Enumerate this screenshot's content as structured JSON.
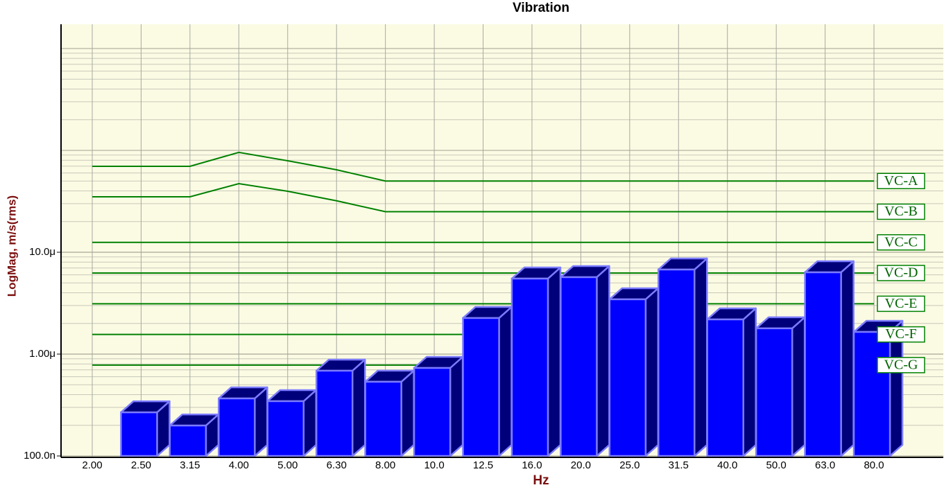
{
  "chart_data": {
    "type": "bar",
    "title": "Vibration",
    "x_label": "Hz",
    "y_label": "LogMag, m/s(rms)",
    "categories": [
      "2.00",
      "2.50",
      "3.15",
      "4.00",
      "5.00",
      "6.30",
      "8.00",
      "10.0",
      "12.5",
      "16.0",
      "20.0",
      "25.0",
      "31.5",
      "40.0",
      "50.0",
      "63.0",
      "80.0"
    ],
    "values": [
      null,
      2.68e-07,
      1.99e-07,
      3.67e-07,
      3.45e-07,
      6.87e-07,
      5.35e-07,
      7.31e-07,
      2.26e-06,
      5.51e-06,
      5.69e-06,
      3.45e-06,
      6.76e-06,
      2.19e-06,
      1.79e-06,
      6.35e-06,
      1.65e-06
    ],
    "color": "#0000ff",
    "ylim": [
      1e-07,
      0.00173
    ],
    "log_y": true,
    "yticks": [
      {
        "value": 1e-07,
        "label": "100.0n"
      },
      {
        "value": 1e-06,
        "label": "1.00μ"
      },
      {
        "value": 1e-05,
        "label": "10.0μ"
      }
    ],
    "grid": true,
    "criteria": [
      {
        "name": "VC-A",
        "color": "#008000",
        "values": [
          6.98e-05,
          6.98e-05,
          6.98e-05,
          9.55e-05,
          7.9e-05,
          6.45e-05,
          5e-05,
          5e-05,
          5e-05,
          5e-05,
          5e-05,
          5e-05,
          5e-05,
          5e-05,
          5e-05,
          5e-05,
          5e-05
        ]
      },
      {
        "name": "VC-B",
        "color": "#008000",
        "values": [
          3.5e-05,
          3.5e-05,
          3.5e-05,
          4.71e-05,
          3.97e-05,
          3.2e-05,
          2.5e-05,
          2.5e-05,
          2.5e-05,
          2.5e-05,
          2.5e-05,
          2.5e-05,
          2.5e-05,
          2.5e-05,
          2.5e-05,
          2.5e-05,
          2.5e-05
        ]
      },
      {
        "name": "VC-C",
        "color": "#008000",
        "values": [
          1.25e-05,
          1.25e-05,
          1.25e-05,
          1.25e-05,
          1.25e-05,
          1.25e-05,
          1.25e-05,
          1.25e-05,
          1.25e-05,
          1.25e-05,
          1.25e-05,
          1.25e-05,
          1.25e-05,
          1.25e-05,
          1.25e-05,
          1.25e-05,
          1.25e-05
        ]
      },
      {
        "name": "VC-D",
        "color": "#008000",
        "values": [
          6.25e-06,
          6.25e-06,
          6.25e-06,
          6.25e-06,
          6.25e-06,
          6.25e-06,
          6.25e-06,
          6.25e-06,
          6.25e-06,
          6.25e-06,
          6.25e-06,
          6.25e-06,
          6.25e-06,
          6.25e-06,
          6.25e-06,
          6.25e-06,
          6.25e-06
        ]
      },
      {
        "name": "VC-E",
        "color": "#008000",
        "values": [
          3.12e-06,
          3.12e-06,
          3.12e-06,
          3.12e-06,
          3.12e-06,
          3.12e-06,
          3.12e-06,
          3.12e-06,
          3.12e-06,
          3.12e-06,
          3.12e-06,
          3.12e-06,
          3.12e-06,
          3.12e-06,
          3.12e-06,
          3.12e-06,
          3.12e-06
        ]
      },
      {
        "name": "VC-F",
        "color": "#008000",
        "values": [
          1.56e-06,
          1.56e-06,
          1.56e-06,
          1.56e-06,
          1.56e-06,
          1.56e-06,
          1.56e-06,
          1.56e-06,
          1.56e-06,
          1.56e-06,
          1.56e-06,
          1.56e-06,
          1.56e-06,
          1.56e-06,
          1.56e-06,
          1.56e-06,
          1.56e-06
        ]
      },
      {
        "name": "VC-G",
        "color": "#008000",
        "values": [
          7.8e-07,
          7.8e-07,
          7.8e-07,
          7.8e-07,
          7.8e-07,
          7.8e-07,
          7.8e-07,
          7.8e-07,
          7.8e-07,
          7.8e-07,
          7.8e-07,
          7.8e-07,
          7.8e-07,
          7.8e-07,
          7.8e-07,
          7.8e-07,
          7.8e-07
        ]
      }
    ]
  }
}
